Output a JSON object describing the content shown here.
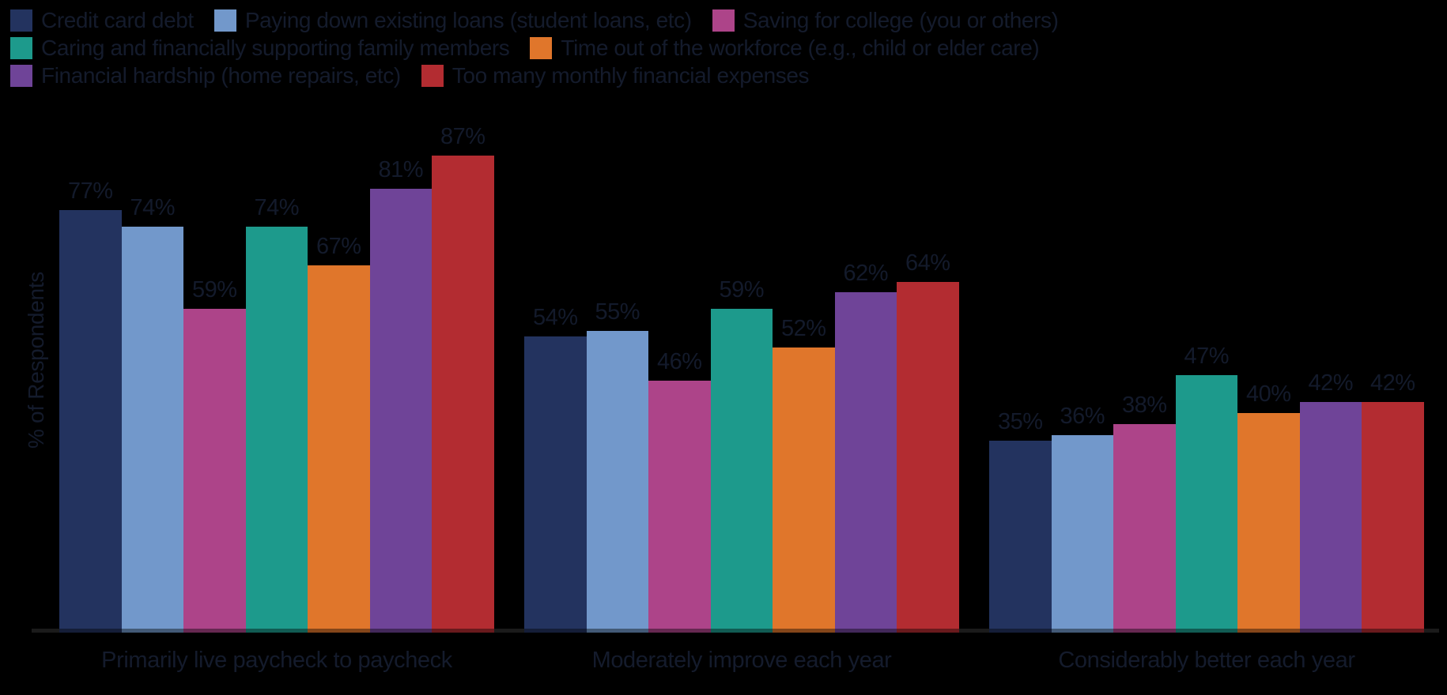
{
  "background_color": "#000000",
  "text_color": "#141b2c",
  "axis_line_color": "#2e2e2e",
  "ylabel": "% of Respondents",
  "chart_data": {
    "type": "bar",
    "title": "",
    "ylabel": "% of Respondents",
    "xlabel": "",
    "ylim": [
      0,
      100
    ],
    "grid": false,
    "legend_position": "top",
    "legend_rows": [
      [
        0,
        1,
        2
      ],
      [
        3,
        4
      ],
      [
        5,
        6
      ]
    ],
    "value_suffix": "%",
    "categories": [
      "Primarily live paycheck to paycheck",
      "Moderately improve each year",
      "Considerably better each year"
    ],
    "series": [
      {
        "name": "Credit card debt",
        "color": "#23335f",
        "values": [
          77,
          54,
          35
        ]
      },
      {
        "name": "Paying down existing loans (student loans, etc)",
        "color": "#7298cb",
        "values": [
          74,
          55,
          36
        ]
      },
      {
        "name": "Saving for college (you or others)",
        "color": "#ad4489",
        "values": [
          59,
          46,
          38
        ]
      },
      {
        "name": "Caring and financially supporting family members",
        "color": "#1d9a8c",
        "values": [
          74,
          59,
          47
        ]
      },
      {
        "name": "Time out of the workforce (e.g., child or elder care)",
        "color": "#e0762b",
        "values": [
          67,
          52,
          40
        ]
      },
      {
        "name": "Financial hardship (home repairs, etc)",
        "color": "#6f4498",
        "values": [
          81,
          62,
          42
        ]
      },
      {
        "name": "Too many monthly financial expenses",
        "color": "#b32c31",
        "values": [
          87,
          64,
          42
        ]
      }
    ]
  }
}
